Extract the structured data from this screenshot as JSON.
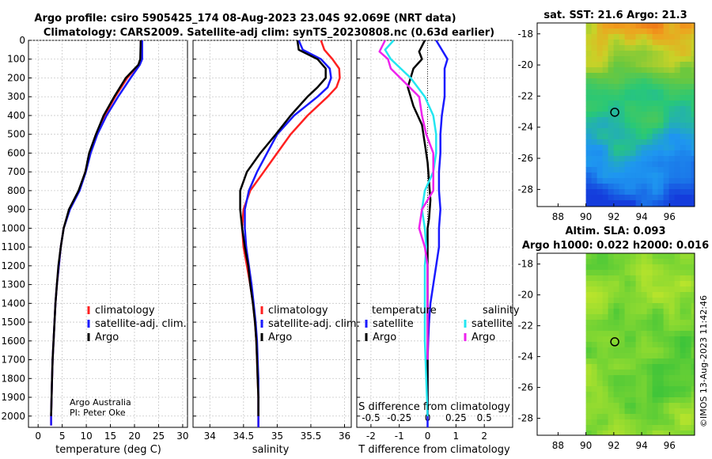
{
  "header": {
    "title_line1": "Argo profile: csiro 5905425_174 08-Aug-2023 23.04S 92.069E (NRT data)",
    "title_line2": "Climatology: CARS2009. Satellite-adj clim: synTS_20230808.nc (0.63d earlier)"
  },
  "colors": {
    "climatology": "#ff2020",
    "satellite": "#1a1aff",
    "argo": "#000000",
    "sat_salinity": "#22e6f0",
    "argo_salinity": "#ee22ee"
  },
  "credits": {
    "line1": "Argo Australia",
    "line2": "PI: Peter Oke"
  },
  "side": {
    "sst_title": "sat. SST: 21.6 Argo: 21.3",
    "sla_title1": "Altim. SLA: 0.093",
    "sla_title2": "Argo h1000: 0.022 h2000: 0.016",
    "stamp": "©IMOS 13-Aug-2023 11:42:46"
  },
  "chart_data": [
    {
      "type": "line",
      "id": "temperature",
      "xlabel": "temperature (deg C)",
      "ylabel": "",
      "xlim": [
        -2,
        31
      ],
      "ylim": [
        2060,
        0
      ],
      "xticks": [
        0,
        5,
        10,
        15,
        20,
        25,
        30
      ],
      "xtick_labels": [
        "0",
        "5",
        "10",
        "15",
        "20",
        "25",
        "30"
      ],
      "yticks": [
        0,
        100,
        200,
        300,
        400,
        500,
        600,
        700,
        800,
        900,
        1000,
        1100,
        1200,
        1300,
        1400,
        1500,
        1600,
        1700,
        1800,
        1900,
        2000
      ],
      "legend": [
        "climatology",
        "satellite-adj. clim.",
        "Argo"
      ],
      "series": [
        {
          "name": "climatology",
          "color": "#ff2020",
          "x": [
            21.3,
            21.3,
            20.8,
            18.5,
            16,
            13.8,
            12,
            10.7,
            9.8,
            8.5,
            6.5,
            5.3,
            4.7,
            4.3,
            3.9,
            3.6,
            3.4,
            3.2,
            3.0,
            2.9,
            2.8,
            2.7,
            2.7
          ],
          "y": [
            0,
            100,
            130,
            200,
            300,
            400,
            500,
            600,
            700,
            800,
            900,
            1000,
            1100,
            1200,
            1300,
            1400,
            1500,
            1600,
            1700,
            1800,
            1900,
            2000,
            2050
          ]
        },
        {
          "name": "satellite-adj. clim.",
          "color": "#1a1aff",
          "x": [
            21.6,
            21.6,
            21.1,
            19.2,
            16.6,
            14.2,
            12.3,
            10.9,
            9.9,
            8.6,
            6.6,
            5.3,
            4.7,
            4.3,
            3.9,
            3.6,
            3.4,
            3.2,
            3.0,
            2.9,
            2.8,
            2.7,
            2.7
          ],
          "y": [
            0,
            100,
            130,
            200,
            300,
            400,
            500,
            600,
            700,
            800,
            900,
            1000,
            1100,
            1200,
            1300,
            1400,
            1500,
            1600,
            1700,
            1800,
            1900,
            2000,
            2050
          ]
        },
        {
          "name": "Argo",
          "color": "#000000",
          "x": [
            21.3,
            21.2,
            20.8,
            18.2,
            15.8,
            13.6,
            12,
            10.6,
            9.8,
            8.4,
            6.4,
            5.3,
            4.7,
            4.2,
            3.9,
            3.6,
            3.4,
            3.2,
            3.0,
            2.9,
            2.8,
            2.7
          ],
          "y": [
            0,
            100,
            130,
            200,
            300,
            400,
            500,
            600,
            700,
            800,
            900,
            1000,
            1100,
            1200,
            1300,
            1400,
            1500,
            1600,
            1700,
            1800,
            1900,
            2000
          ]
        }
      ]
    },
    {
      "type": "line",
      "id": "salinity",
      "xlabel": "salinity",
      "xlim": [
        33.75,
        36.1
      ],
      "ylim": [
        2060,
        0
      ],
      "xticks": [
        34,
        34.5,
        35,
        35.5,
        36
      ],
      "xtick_labels": [
        "34",
        "34.5",
        "35",
        "35.5",
        "36"
      ],
      "legend": [
        "climatology",
        "satellite-adj. clim.",
        "Argo"
      ],
      "series": [
        {
          "name": "climatology",
          "color": "#ff2020",
          "x": [
            35.65,
            35.7,
            35.82,
            35.92,
            35.93,
            35.88,
            35.75,
            35.45,
            35.2,
            35.0,
            34.8,
            34.6,
            34.5,
            34.48,
            34.5,
            34.55,
            34.6,
            34.64,
            34.67,
            34.69,
            34.7,
            34.71,
            34.72,
            34.72,
            34.72,
            34.72
          ],
          "y": [
            0,
            50,
            100,
            150,
            200,
            250,
            300,
            400,
            500,
            600,
            700,
            800,
            900,
            1000,
            1100,
            1200,
            1300,
            1400,
            1500,
            1600,
            1700,
            1800,
            1900,
            2000,
            2030,
            2060
          ]
        },
        {
          "name": "satellite-adj. clim.",
          "color": "#1a1aff",
          "x": [
            35.32,
            35.38,
            35.65,
            35.78,
            35.8,
            35.75,
            35.6,
            35.25,
            35.0,
            34.85,
            34.7,
            34.58,
            34.52,
            34.52,
            34.54,
            34.58,
            34.62,
            34.65,
            34.68,
            34.7,
            34.71,
            34.72,
            34.72,
            34.72,
            34.72,
            34.72
          ],
          "y": [
            0,
            50,
            100,
            150,
            200,
            250,
            300,
            400,
            500,
            600,
            700,
            800,
            900,
            1000,
            1100,
            1200,
            1300,
            1400,
            1500,
            1600,
            1700,
            1800,
            1900,
            2000,
            2030,
            2060
          ]
        },
        {
          "name": "Argo",
          "color": "#000000",
          "x": [
            35.3,
            35.32,
            35.6,
            35.72,
            35.72,
            35.6,
            35.45,
            35.2,
            34.98,
            34.75,
            34.55,
            34.45,
            34.45,
            34.48,
            34.52,
            34.57,
            34.6,
            34.64,
            34.67,
            34.69,
            34.7,
            34.71,
            34.72,
            34.72
          ],
          "y": [
            0,
            50,
            100,
            150,
            200,
            250,
            300,
            400,
            500,
            600,
            700,
            800,
            900,
            1000,
            1100,
            1200,
            1300,
            1400,
            1500,
            1600,
            1700,
            1800,
            1900,
            2000
          ]
        }
      ]
    },
    {
      "type": "line",
      "id": "differences",
      "xlabel": "T difference from climatology",
      "x2label": "S difference from climatology",
      "xlim": [
        -2.5,
        3
      ],
      "ylim": [
        2060,
        0
      ],
      "xticks": [
        -2,
        -1,
        0,
        1,
        2
      ],
      "xtick_labels": [
        "-2",
        "-1",
        "0",
        "1",
        "2"
      ],
      "x2ticks": [
        -2,
        -1,
        0,
        1,
        2
      ],
      "x2tick_labels": [
        "-0.5",
        "-0.25",
        "0",
        "0.25",
        "0.5"
      ],
      "legend_left_title": "temperature",
      "legend_right_title": "salinity",
      "legend": [
        "satellite",
        "Argo",
        "satellite",
        "Argo"
      ],
      "series": [
        {
          "name": "T satellite",
          "color": "#1a1aff",
          "x": [
            0.3,
            0.5,
            0.7,
            0.6,
            0.6,
            0.6,
            0.5,
            0.45,
            0.45,
            0.4,
            0.4,
            0.45,
            0.4,
            0.4,
            0.3,
            0.2,
            0.1,
            0.05,
            0.02,
            0,
            0,
            0
          ],
          "y": [
            0,
            50,
            100,
            150,
            200,
            300,
            400,
            500,
            600,
            700,
            800,
            900,
            1000,
            1100,
            1200,
            1300,
            1400,
            1500,
            1600,
            1700,
            1900,
            2060
          ]
        },
        {
          "name": "T Argo",
          "color": "#000000",
          "x": [
            -0.1,
            -0.3,
            -0.2,
            -0.5,
            -0.7,
            -0.5,
            -0.2,
            -0.1,
            0,
            0.05,
            0.1,
            0.05,
            0,
            0,
            0,
            0,
            0,
            0,
            0,
            0,
            0
          ],
          "y": [
            0,
            60,
            100,
            150,
            250,
            350,
            450,
            550,
            650,
            750,
            850,
            950,
            1000,
            1100,
            1200,
            1300,
            1400,
            1500,
            1600,
            1800,
            2000
          ]
        },
        {
          "name": "S satellite",
          "color": "#22e6f0",
          "x": [
            -1.2,
            -1.5,
            -1.3,
            -0.6,
            -0.1,
            0.2,
            0.3,
            0.3,
            0.2,
            -0.1,
            -0.2,
            -0.1,
            -0.05,
            -0.1,
            -0.1,
            -0.1,
            -0.05,
            0
          ],
          "y": [
            0,
            50,
            100,
            200,
            300,
            400,
            500,
            600,
            700,
            800,
            900,
            1000,
            1100,
            1200,
            1400,
            1600,
            1800,
            2000
          ]
        },
        {
          "name": "S Argo",
          "color": "#ee22ee",
          "x": [
            -1.5,
            -1.7,
            -1.4,
            -1.3,
            -0.3,
            -0.2,
            -0.05,
            0.2,
            0.2,
            0.2,
            -0.2,
            -0.3,
            -0.1,
            0,
            0,
            0
          ],
          "y": [
            0,
            60,
            100,
            150,
            300,
            400,
            500,
            600,
            700,
            800,
            900,
            1000,
            1100,
            1200,
            1500,
            1700
          ]
        }
      ]
    },
    {
      "type": "heatmap",
      "id": "sst-map",
      "title": "sat. SST: 21.6 Argo: 21.3",
      "xlim": [
        86.5,
        97.8
      ],
      "ylim": [
        -29.1,
        -17.3
      ],
      "xticks": [
        88,
        90,
        92,
        94,
        96
      ],
      "yticks": [
        -18,
        -20,
        -22,
        -24,
        -26,
        -28
      ],
      "data_lon_range": [
        90,
        97.8
      ],
      "marker": [
        92.07,
        -23.04
      ]
    },
    {
      "type": "heatmap",
      "id": "sla-map",
      "title": "Altim. SLA: 0.093",
      "xlim": [
        86.5,
        97.8
      ],
      "ylim": [
        -29.1,
        -17.3
      ],
      "xticks": [
        88,
        90,
        92,
        94,
        96
      ],
      "yticks": [
        -18,
        -20,
        -22,
        -24,
        -26,
        -28
      ],
      "data_lon_range": [
        90,
        97.8
      ],
      "marker": [
        92.07,
        -23.04
      ]
    }
  ]
}
